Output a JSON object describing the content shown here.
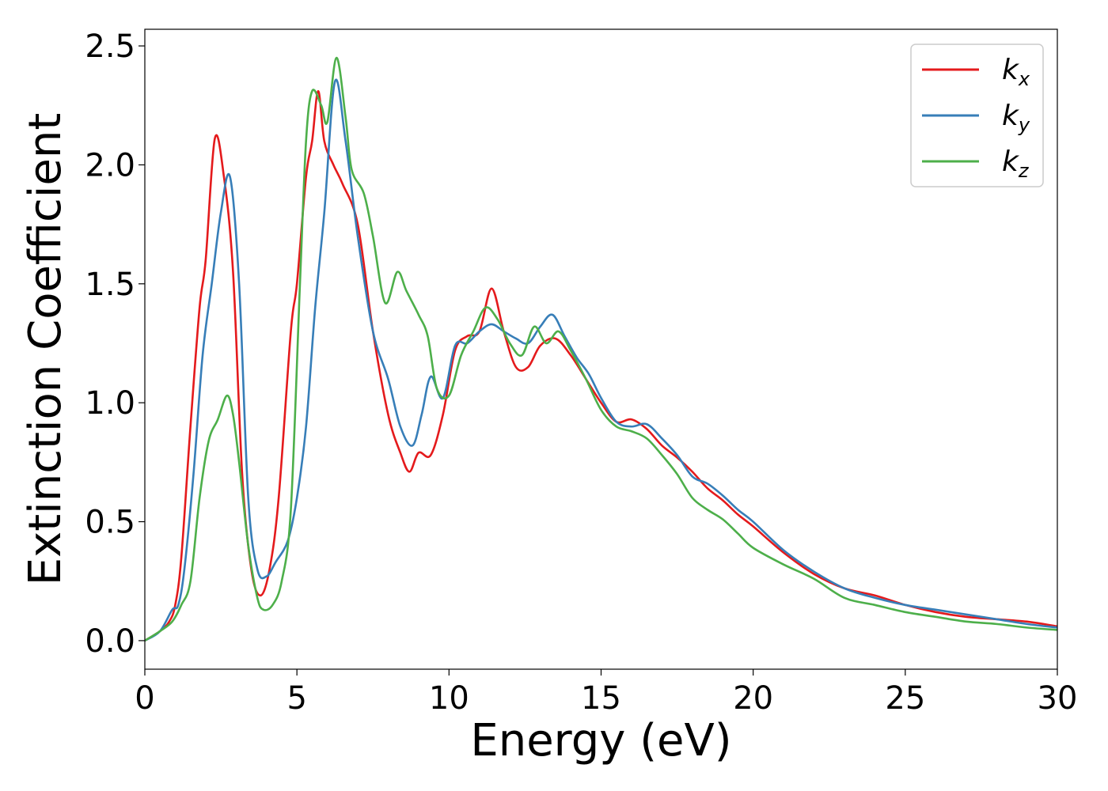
{
  "chart_data": {
    "type": "line",
    "xlabel": "Energy (eV)",
    "ylabel": "Extinction Coefficient",
    "xlim": [
      0,
      30
    ],
    "ylim": [
      -0.12,
      2.57
    ],
    "xticks": [
      0,
      5,
      10,
      15,
      20,
      25,
      30
    ],
    "xtick_labels": [
      "0",
      "5",
      "10",
      "15",
      "20",
      "25",
      "30"
    ],
    "yticks": [
      0.0,
      0.5,
      1.0,
      1.5,
      2.0,
      2.5
    ],
    "ytick_labels": [
      "0.0",
      "0.5",
      "1.0",
      "1.5",
      "2.0",
      "2.5"
    ],
    "grid": false,
    "legend": "top-right",
    "series": [
      {
        "name": "k_x",
        "label_main": "k",
        "label_sub": "x",
        "color": "#e41a1c",
        "x": [
          0,
          0.5,
          0.8,
          1.0,
          1.2,
          1.5,
          1.8,
          2.0,
          2.3,
          2.6,
          2.9,
          3.2,
          3.5,
          3.8,
          4.1,
          4.4,
          4.8,
          5.0,
          5.3,
          5.5,
          5.7,
          5.9,
          6.2,
          6.5,
          7.0,
          7.5,
          8.0,
          8.4,
          8.7,
          9.0,
          9.4,
          9.8,
          10.2,
          10.6,
          11.0,
          11.4,
          11.8,
          12.2,
          12.6,
          13.0,
          13.5,
          14.0,
          14.5,
          15.0,
          15.5,
          16.0,
          16.5,
          17.0,
          17.5,
          18.0,
          18.5,
          19.0,
          19.5,
          20.0,
          21.0,
          22.0,
          23.0,
          24.0,
          25.0,
          26.0,
          27.0,
          28.0,
          29.0,
          30.0
        ],
        "y": [
          0.0,
          0.04,
          0.08,
          0.15,
          0.35,
          0.9,
          1.4,
          1.6,
          2.11,
          1.95,
          1.55,
          0.7,
          0.3,
          0.19,
          0.3,
          0.6,
          1.3,
          1.5,
          1.95,
          2.1,
          2.31,
          2.1,
          2.0,
          1.92,
          1.75,
          1.3,
          0.95,
          0.79,
          0.71,
          0.79,
          0.78,
          0.95,
          1.22,
          1.28,
          1.3,
          1.48,
          1.3,
          1.15,
          1.15,
          1.24,
          1.27,
          1.2,
          1.1,
          1.0,
          0.92,
          0.93,
          0.89,
          0.82,
          0.77,
          0.71,
          0.64,
          0.59,
          0.53,
          0.48,
          0.37,
          0.28,
          0.22,
          0.19,
          0.15,
          0.12,
          0.1,
          0.09,
          0.08,
          0.06
        ]
      },
      {
        "name": "k_y",
        "label_main": "k",
        "label_sub": "y",
        "color": "#377eb8",
        "x": [
          0,
          0.5,
          0.9,
          1.1,
          1.3,
          1.6,
          1.9,
          2.2,
          2.5,
          2.8,
          3.1,
          3.4,
          3.7,
          4.0,
          4.3,
          4.7,
          5.0,
          5.3,
          5.6,
          5.9,
          6.25,
          6.6,
          7.0,
          7.5,
          8.0,
          8.4,
          8.8,
          9.1,
          9.4,
          9.8,
          10.2,
          10.6,
          11.0,
          11.4,
          11.8,
          12.2,
          12.6,
          13.0,
          13.4,
          13.8,
          14.2,
          14.6,
          15.0,
          15.5,
          16.0,
          16.5,
          17.0,
          17.5,
          18.0,
          18.5,
          19.0,
          19.5,
          20.0,
          21.0,
          22.0,
          23.0,
          24.0,
          25.0,
          26.0,
          27.0,
          28.0,
          29.0,
          30.0
        ],
        "y": [
          0.0,
          0.04,
          0.13,
          0.15,
          0.3,
          0.7,
          1.2,
          1.5,
          1.8,
          1.95,
          1.5,
          0.6,
          0.3,
          0.27,
          0.33,
          0.42,
          0.6,
          0.9,
          1.4,
          1.8,
          2.35,
          2.1,
          1.7,
          1.3,
          1.1,
          0.9,
          0.82,
          0.95,
          1.11,
          1.02,
          1.24,
          1.25,
          1.3,
          1.33,
          1.3,
          1.27,
          1.25,
          1.32,
          1.37,
          1.28,
          1.19,
          1.12,
          1.02,
          0.92,
          0.9,
          0.91,
          0.85,
          0.78,
          0.69,
          0.66,
          0.61,
          0.55,
          0.5,
          0.38,
          0.29,
          0.22,
          0.18,
          0.15,
          0.13,
          0.11,
          0.09,
          0.07,
          0.055
        ]
      },
      {
        "name": "k_z",
        "label_main": "k",
        "label_sub": "z",
        "color": "#4daf4a",
        "x": [
          0,
          0.5,
          0.9,
          1.2,
          1.5,
          1.8,
          2.1,
          2.4,
          2.7,
          2.9,
          3.1,
          3.4,
          3.7,
          3.9,
          4.2,
          4.5,
          4.8,
          5.1,
          5.3,
          5.5,
          5.8,
          6.0,
          6.3,
          6.6,
          6.8,
          7.2,
          7.5,
          7.9,
          8.3,
          8.6,
          9.0,
          9.3,
          9.6,
          10.0,
          10.4,
          10.8,
          11.2,
          11.6,
          12.0,
          12.4,
          12.8,
          13.2,
          13.6,
          14.0,
          14.5,
          15.0,
          15.5,
          16.0,
          16.5,
          17.0,
          17.5,
          18.0,
          18.5,
          19.0,
          19.5,
          20.0,
          21.0,
          22.0,
          23.0,
          24.0,
          25.0,
          26.0,
          27.0,
          28.0,
          29.0,
          30.0
        ],
        "y": [
          0.0,
          0.04,
          0.08,
          0.15,
          0.25,
          0.6,
          0.84,
          0.93,
          1.03,
          0.95,
          0.75,
          0.4,
          0.18,
          0.13,
          0.15,
          0.25,
          0.55,
          1.5,
          2.1,
          2.31,
          2.25,
          2.18,
          2.45,
          2.2,
          1.98,
          1.88,
          1.7,
          1.42,
          1.55,
          1.47,
          1.37,
          1.28,
          1.06,
          1.03,
          1.2,
          1.3,
          1.4,
          1.35,
          1.25,
          1.2,
          1.32,
          1.25,
          1.3,
          1.22,
          1.1,
          0.97,
          0.9,
          0.88,
          0.85,
          0.78,
          0.7,
          0.6,
          0.55,
          0.51,
          0.45,
          0.39,
          0.32,
          0.26,
          0.18,
          0.15,
          0.12,
          0.1,
          0.08,
          0.07,
          0.055,
          0.045
        ]
      }
    ]
  }
}
